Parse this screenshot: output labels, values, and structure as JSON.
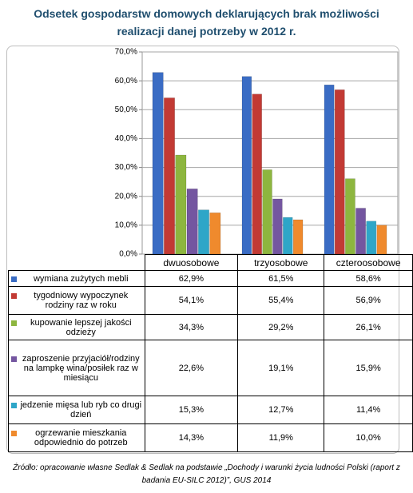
{
  "chart_data": {
    "type": "bar",
    "title": "Odsetek gospodarstw domowych deklarujących brak możliwości realizacji danej potrzeby w 2012 r.",
    "categories": [
      "dwuosobowe",
      "trzyosobowe",
      "czteroosobowe"
    ],
    "series": [
      {
        "name": "wymiana zużytych mebli",
        "color": "#3a6cc4",
        "values": [
          62.9,
          61.5,
          58.6
        ],
        "value_labels": [
          "62,9%",
          "61,5%",
          "58,6%"
        ]
      },
      {
        "name": "tygodniowy wypoczynek rodziny raz w roku",
        "color": "#c23a34",
        "values": [
          54.1,
          55.4,
          56.9
        ],
        "value_labels": [
          "54,1%",
          "55,4%",
          "56,9%"
        ]
      },
      {
        "name": "kupowanie lepszej jakości odzieży",
        "color": "#8db63f",
        "values": [
          34.3,
          29.2,
          26.1
        ],
        "value_labels": [
          "34,3%",
          "29,2%",
          "26,1%"
        ]
      },
      {
        "name": "zaproszenie przyjaciół/rodziny na lampkę wina/posiłek raz w miesiącu",
        "color": "#7456a0",
        "values": [
          22.6,
          19.1,
          15.9
        ],
        "value_labels": [
          "22,6%",
          "19,1%",
          "15,9%"
        ]
      },
      {
        "name": "jedzenie mięsa lub ryb co drugi dzień",
        "color": "#2ea6c8",
        "values": [
          15.3,
          12.7,
          11.4
        ],
        "value_labels": [
          "15,3%",
          "12,7%",
          "11,4%"
        ]
      },
      {
        "name": "ogrzewanie mieszkania odpowiednio do potrzeb",
        "color": "#ef8a2d",
        "values": [
          14.3,
          11.9,
          10.0
        ],
        "value_labels": [
          "14,3%",
          "11,9%",
          "10,0%"
        ]
      }
    ],
    "ylim": [
      0,
      70
    ],
    "yticks": [
      {
        "value": 0,
        "label": "0,0%"
      },
      {
        "value": 10,
        "label": "10,0%"
      },
      {
        "value": 20,
        "label": "20,0%"
      },
      {
        "value": 30,
        "label": "30,0%"
      },
      {
        "value": 40,
        "label": "40,0%"
      },
      {
        "value": 50,
        "label": "50,0%"
      },
      {
        "value": 60,
        "label": "60,0%"
      },
      {
        "value": 70,
        "label": "70,0%"
      }
    ],
    "grid": true,
    "source": "Źródło: opracowanie własne Sedlak & Sedlak na podstawie „Dochody i warunki życia ludności Polski (raport z badania EU-SILC 2012)”, GUS 2014"
  }
}
